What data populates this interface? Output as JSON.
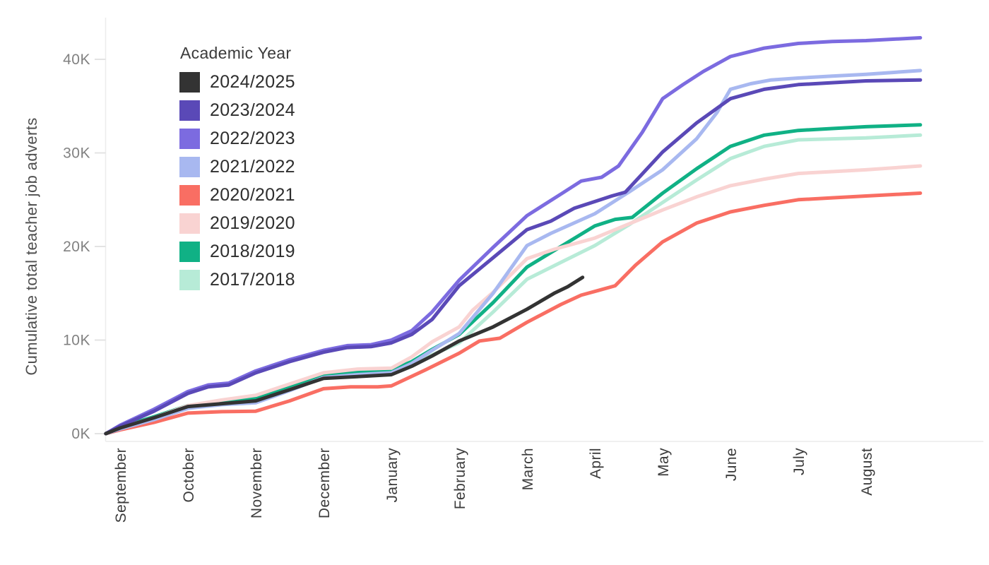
{
  "chart_data": {
    "type": "line",
    "title": "",
    "xlabel": "",
    "ylabel": "Cumulative total teacher job adverts",
    "legend_title": "Academic Year",
    "legend_position": "upper-left-inside",
    "grid": false,
    "x_unit": "month_index (0 = September tick, 11 = August tick; fractional = weeks within season)",
    "y_unit": "thousands of job adverts (K)",
    "x_categories": [
      "September",
      "October",
      "November",
      "December",
      "January",
      "February",
      "March",
      "April",
      "May",
      "June",
      "July",
      "August"
    ],
    "y_ticks": [
      {
        "label": "0K",
        "value": 0
      },
      {
        "label": "10K",
        "value": 10
      },
      {
        "label": "20K",
        "value": 20
      },
      {
        "label": "30K",
        "value": 30
      },
      {
        "label": "40K",
        "value": 40
      }
    ],
    "ylim": [
      0,
      44
    ],
    "series": [
      {
        "name": "2024/2025",
        "color": "#333333",
        "points": [
          [
            -0.21,
            0
          ],
          [
            0,
            0.6
          ],
          [
            0.5,
            1.7
          ],
          [
            1,
            2.9
          ],
          [
            1.5,
            3.2
          ],
          [
            2,
            3.5
          ],
          [
            2.5,
            4.7
          ],
          [
            3,
            5.9
          ],
          [
            3.5,
            6.1
          ],
          [
            4,
            6.3
          ],
          [
            4.3,
            7.2
          ],
          [
            4.6,
            8.3
          ],
          [
            5,
            9.9
          ],
          [
            5.3,
            10.8
          ],
          [
            5.5,
            11.4
          ],
          [
            6,
            13.3
          ],
          [
            6.4,
            15.0
          ],
          [
            6.6,
            15.7
          ],
          [
            6.82,
            16.7
          ]
        ]
      },
      {
        "name": "2023/2024",
        "color": "#5a49b7",
        "points": [
          [
            -0.21,
            0
          ],
          [
            0,
            0.8
          ],
          [
            0.5,
            2.4
          ],
          [
            1,
            4.3
          ],
          [
            1.3,
            5.0
          ],
          [
            1.6,
            5.2
          ],
          [
            2,
            6.5
          ],
          [
            2.5,
            7.7
          ],
          [
            3,
            8.7
          ],
          [
            3.35,
            9.2
          ],
          [
            3.7,
            9.3
          ],
          [
            4,
            9.7
          ],
          [
            4.3,
            10.6
          ],
          [
            4.6,
            12.2
          ],
          [
            5,
            15.8
          ],
          [
            5.5,
            18.8
          ],
          [
            6,
            21.8
          ],
          [
            6.35,
            22.7
          ],
          [
            6.7,
            24.1
          ],
          [
            7,
            24.8
          ],
          [
            7.25,
            25.4
          ],
          [
            7.45,
            25.8
          ],
          [
            8,
            30.1
          ],
          [
            8.5,
            33.2
          ],
          [
            9,
            35.8
          ],
          [
            9.5,
            36.8
          ],
          [
            10,
            37.3
          ],
          [
            10.5,
            37.5
          ],
          [
            11,
            37.7
          ],
          [
            11.8,
            37.8
          ]
        ]
      },
      {
        "name": "2022/2023",
        "color": "#7c6be0",
        "points": [
          [
            -0.21,
            0
          ],
          [
            0,
            0.9
          ],
          [
            0.5,
            2.6
          ],
          [
            1,
            4.5
          ],
          [
            1.3,
            5.2
          ],
          [
            1.6,
            5.4
          ],
          [
            2,
            6.7
          ],
          [
            2.5,
            7.9
          ],
          [
            3,
            8.9
          ],
          [
            3.35,
            9.4
          ],
          [
            3.7,
            9.5
          ],
          [
            4,
            10.0
          ],
          [
            4.3,
            11.0
          ],
          [
            4.6,
            13.0
          ],
          [
            5,
            16.4
          ],
          [
            5.5,
            19.9
          ],
          [
            6,
            23.3
          ],
          [
            6.5,
            25.6
          ],
          [
            6.8,
            27.0
          ],
          [
            7.1,
            27.4
          ],
          [
            7.35,
            28.6
          ],
          [
            7.7,
            32.2
          ],
          [
            8,
            35.8
          ],
          [
            8.3,
            37.3
          ],
          [
            8.6,
            38.7
          ],
          [
            9,
            40.3
          ],
          [
            9.5,
            41.2
          ],
          [
            10,
            41.7
          ],
          [
            10.5,
            41.9
          ],
          [
            11,
            42.0
          ],
          [
            11.8,
            42.3
          ]
        ]
      },
      {
        "name": "2021/2022",
        "color": "#a8b8f0",
        "points": [
          [
            -0.21,
            0
          ],
          [
            0,
            0.5
          ],
          [
            0.5,
            1.5
          ],
          [
            1,
            2.7
          ],
          [
            1.5,
            3.1
          ],
          [
            2,
            3.3
          ],
          [
            2.5,
            4.6
          ],
          [
            3,
            6.0
          ],
          [
            3.5,
            6.3
          ],
          [
            4,
            6.5
          ],
          [
            4.3,
            7.5
          ],
          [
            4.6,
            8.9
          ],
          [
            5,
            10.7
          ],
          [
            5.5,
            15.0
          ],
          [
            6,
            20.1
          ],
          [
            6.35,
            21.4
          ],
          [
            7,
            23.5
          ],
          [
            7.5,
            25.8
          ],
          [
            8,
            28.2
          ],
          [
            8.5,
            31.5
          ],
          [
            8.8,
            34.3
          ],
          [
            9,
            36.8
          ],
          [
            9.3,
            37.4
          ],
          [
            9.6,
            37.8
          ],
          [
            10,
            38.0
          ],
          [
            10.5,
            38.2
          ],
          [
            11,
            38.4
          ],
          [
            11.8,
            38.8
          ]
        ]
      },
      {
        "name": "2020/2021",
        "color": "#f96e63",
        "points": [
          [
            -0.21,
            0
          ],
          [
            0,
            0.4
          ],
          [
            0.5,
            1.2
          ],
          [
            1,
            2.2
          ],
          [
            1.5,
            2.35
          ],
          [
            2,
            2.4
          ],
          [
            2.5,
            3.5
          ],
          [
            3,
            4.8
          ],
          [
            3.4,
            5.0
          ],
          [
            3.8,
            5.0
          ],
          [
            4,
            5.1
          ],
          [
            4.5,
            6.8
          ],
          [
            5,
            8.6
          ],
          [
            5.3,
            9.9
          ],
          [
            5.6,
            10.2
          ],
          [
            6,
            11.9
          ],
          [
            6.5,
            13.8
          ],
          [
            6.8,
            14.8
          ],
          [
            7.05,
            15.3
          ],
          [
            7.3,
            15.8
          ],
          [
            7.6,
            18.0
          ],
          [
            8,
            20.5
          ],
          [
            8.5,
            22.5
          ],
          [
            9,
            23.7
          ],
          [
            9.5,
            24.4
          ],
          [
            10,
            25.0
          ],
          [
            10.5,
            25.2
          ],
          [
            11,
            25.4
          ],
          [
            11.8,
            25.7
          ]
        ]
      },
      {
        "name": "2019/2020",
        "color": "#f9d3d2",
        "points": [
          [
            -0.21,
            0
          ],
          [
            0,
            0.6
          ],
          [
            0.5,
            1.7
          ],
          [
            1,
            3.0
          ],
          [
            1.5,
            3.6
          ],
          [
            2,
            4.1
          ],
          [
            2.5,
            5.3
          ],
          [
            3,
            6.5
          ],
          [
            3.5,
            6.9
          ],
          [
            4,
            7.0
          ],
          [
            4.3,
            8.2
          ],
          [
            4.6,
            9.8
          ],
          [
            5,
            11.4
          ],
          [
            5.2,
            13.2
          ],
          [
            5.5,
            15.1
          ],
          [
            6,
            18.7
          ],
          [
            6.4,
            19.7
          ],
          [
            7,
            20.9
          ],
          [
            7.5,
            22.4
          ],
          [
            8,
            23.9
          ],
          [
            8.5,
            25.3
          ],
          [
            9,
            26.5
          ],
          [
            9.5,
            27.2
          ],
          [
            10,
            27.8
          ],
          [
            10.5,
            28.0
          ],
          [
            11,
            28.2
          ],
          [
            11.8,
            28.6
          ]
        ]
      },
      {
        "name": "2018/2019",
        "color": "#10b185",
        "points": [
          [
            -0.21,
            0
          ],
          [
            0,
            0.7
          ],
          [
            0.5,
            1.8
          ],
          [
            1,
            3.0
          ],
          [
            1.5,
            3.4
          ],
          [
            2,
            3.85
          ],
          [
            2.5,
            5.1
          ],
          [
            3,
            6.3
          ],
          [
            3.5,
            6.6
          ],
          [
            4,
            6.8
          ],
          [
            4.3,
            7.7
          ],
          [
            4.6,
            9.0
          ],
          [
            5,
            10.6
          ],
          [
            5.5,
            14.0
          ],
          [
            6,
            17.8
          ],
          [
            6.5,
            20.0
          ],
          [
            7,
            22.2
          ],
          [
            7.3,
            22.9
          ],
          [
            7.55,
            23.1
          ],
          [
            8,
            25.7
          ],
          [
            8.5,
            28.3
          ],
          [
            9,
            30.7
          ],
          [
            9.5,
            31.9
          ],
          [
            10,
            32.4
          ],
          [
            10.5,
            32.6
          ],
          [
            11,
            32.8
          ],
          [
            11.8,
            33.0
          ]
        ]
      },
      {
        "name": "2017/2018",
        "color": "#b7ebd7",
        "points": [
          [
            -0.21,
            0
          ],
          [
            0,
            0.6
          ],
          [
            0.5,
            1.6
          ],
          [
            1,
            2.8
          ],
          [
            1.5,
            3.1
          ],
          [
            2,
            3.3
          ],
          [
            2.5,
            4.7
          ],
          [
            3,
            6.1
          ],
          [
            3.5,
            6.4
          ],
          [
            4,
            6.6
          ],
          [
            4.3,
            7.4
          ],
          [
            4.6,
            8.4
          ],
          [
            5,
            9.7
          ],
          [
            5.5,
            13.0
          ],
          [
            6,
            16.5
          ],
          [
            6.5,
            18.3
          ],
          [
            7,
            20.1
          ],
          [
            7.5,
            22.3
          ],
          [
            8,
            24.7
          ],
          [
            8.5,
            27.1
          ],
          [
            9,
            29.4
          ],
          [
            9.5,
            30.7
          ],
          [
            10,
            31.4
          ],
          [
            10.5,
            31.5
          ],
          [
            11,
            31.6
          ],
          [
            11.8,
            31.9
          ]
        ]
      }
    ]
  },
  "colors": {
    "background": "#ffffff",
    "axis_line": "#ececec",
    "tick_mark": "#e3e3e3",
    "y_tick_label": "#818181",
    "x_tick_label": "#3c3c3c",
    "axis_title": "#4f4f4f"
  }
}
